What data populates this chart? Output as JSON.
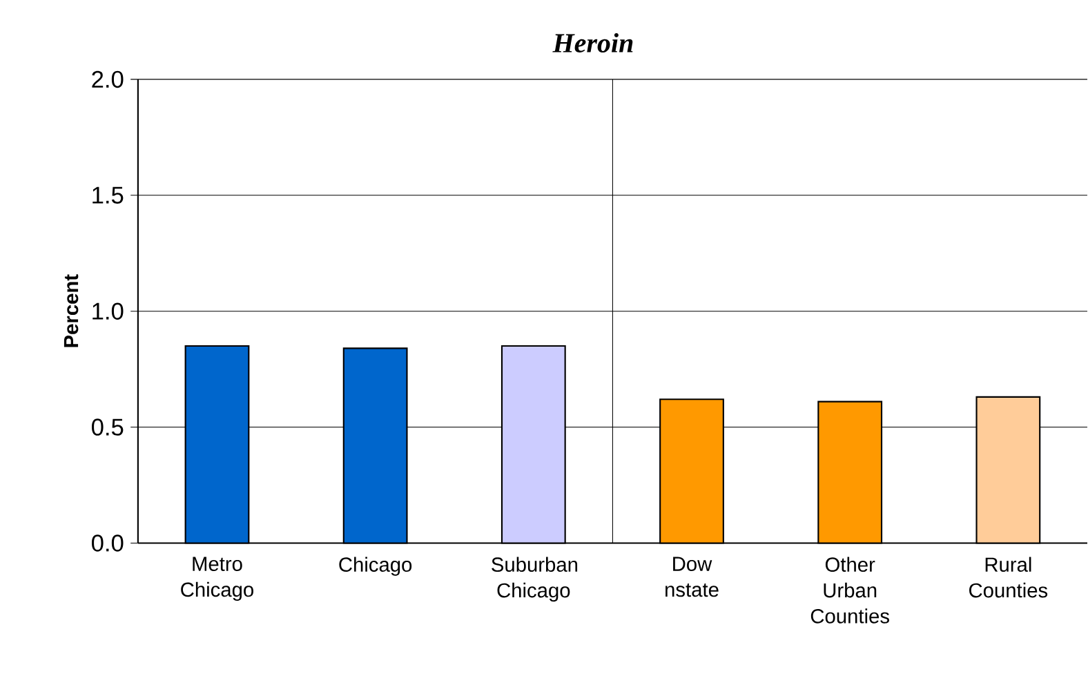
{
  "chart_data": {
    "type": "bar",
    "title": "Heroin",
    "ylabel": "Percent",
    "categories": [
      "Metro Chicago",
      "Chicago",
      "Suburban Chicago",
      "Dow nstate",
      "Other Urban Counties",
      "Rural Counties"
    ],
    "values": [
      0.85,
      0.84,
      0.85,
      0.62,
      0.61,
      0.63
    ],
    "colors": [
      "#0066cc",
      "#0066cc",
      "#ccccff",
      "#ff9900",
      "#ff9900",
      "#ffcc99"
    ],
    "ylim": [
      0,
      2
    ],
    "yticks": [
      {
        "value": 0,
        "label": "0.0"
      },
      {
        "value": 0.5,
        "label": "0.5"
      },
      {
        "value": 1,
        "label": "1.0"
      },
      {
        "value": 1.5,
        "label": "1.5"
      },
      {
        "value": 2,
        "label": "2.0"
      }
    ],
    "grid": "y"
  }
}
